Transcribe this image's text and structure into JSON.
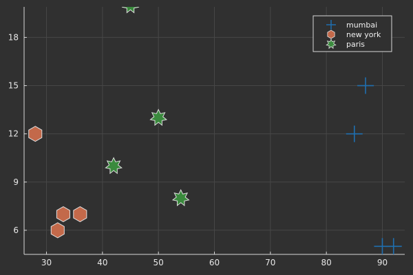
{
  "chart_data": {
    "type": "scatter",
    "title": "",
    "xlabel": "",
    "ylabel": "",
    "xlim": [
      26,
      94
    ],
    "ylim": [
      4.5,
      19.9
    ],
    "xticks": [
      30,
      40,
      50,
      60,
      70,
      80,
      90
    ],
    "yticks": [
      6,
      9,
      12,
      15,
      18
    ],
    "grid": true,
    "legend_position": "top-right",
    "series": [
      {
        "name": "mumbai",
        "marker": "cross",
        "color": "#1f6fb0",
        "points": [
          {
            "x": 85,
            "y": 12
          },
          {
            "x": 87,
            "y": 15
          },
          {
            "x": 90,
            "y": 5
          },
          {
            "x": 92,
            "y": 5
          }
        ]
      },
      {
        "name": "new york",
        "marker": "hexagon",
        "color": "#c3694a",
        "points": [
          {
            "x": 28,
            "y": 12
          },
          {
            "x": 32,
            "y": 6
          },
          {
            "x": 33,
            "y": 7
          },
          {
            "x": 36,
            "y": 7
          }
        ]
      },
      {
        "name": "paris",
        "marker": "star7",
        "color": "#3a8a3d",
        "points": [
          {
            "x": 42,
            "y": 10
          },
          {
            "x": 45,
            "y": 20
          },
          {
            "x": 50,
            "y": 13
          },
          {
            "x": 54,
            "y": 8
          }
        ]
      }
    ]
  }
}
